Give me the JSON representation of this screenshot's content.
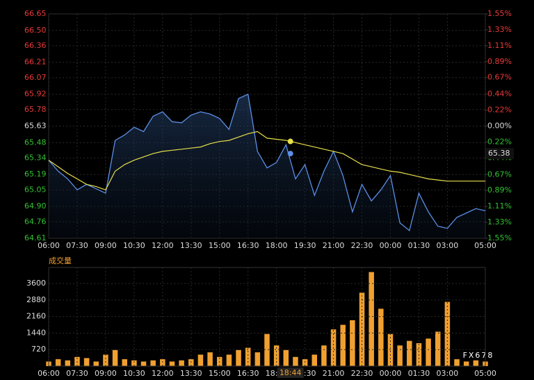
{
  "chart_data": [
    {
      "type": "line",
      "categories": [
        "06:00",
        null,
        null,
        "07:30",
        null,
        null,
        "09:00",
        null,
        null,
        "10:30",
        null,
        null,
        "12:00",
        null,
        null,
        "13:30",
        null,
        null,
        "15:00",
        null,
        null,
        "16:30",
        null,
        null,
        "18:00",
        null,
        null,
        "19:30",
        null,
        null,
        "21:00",
        null,
        null,
        "22:30",
        null,
        null,
        "00:00",
        null,
        null,
        "01:30",
        null,
        null,
        "03:00",
        null,
        null,
        null,
        "05:00"
      ],
      "series": [
        {
          "color": "#5b8fe6",
          "values": [
            65.32,
            65.22,
            65.15,
            65.05,
            65.1,
            65.06,
            65.02,
            65.5,
            65.55,
            65.62,
            65.58,
            65.72,
            65.76,
            65.67,
            65.66,
            65.73,
            65.76,
            65.74,
            65.7,
            65.6,
            65.88,
            65.92,
            65.4,
            65.25,
            65.3,
            65.46,
            65.15,
            65.28,
            65.0,
            65.22,
            65.4,
            65.18,
            64.85,
            65.1,
            64.95,
            65.05,
            65.18,
            64.75,
            64.68,
            65.02,
            64.85,
            64.72,
            64.7,
            64.8,
            64.84,
            64.88,
            64.86
          ]
        },
        {
          "color": "#e8e04a",
          "values": [
            65.32,
            65.26,
            65.2,
            65.15,
            65.1,
            65.08,
            65.05,
            65.22,
            65.28,
            65.32,
            65.35,
            65.38,
            65.4,
            65.41,
            65.42,
            65.43,
            65.44,
            65.47,
            65.49,
            65.5,
            65.53,
            65.56,
            65.58,
            65.52,
            65.51,
            65.5,
            65.48,
            65.46,
            65.44,
            65.42,
            65.4,
            65.38,
            65.33,
            65.28,
            65.26,
            65.24,
            65.22,
            65.21,
            65.19,
            65.17,
            65.15,
            65.14,
            65.13,
            65.13,
            65.13,
            65.13,
            65.13
          ]
        }
      ],
      "ylim": [
        64.61,
        66.65
      ],
      "yticks": [
        66.65,
        {
          "value": 66.5,
          "label": "66.50"
        },
        66.36,
        66.21,
        66.07,
        65.92,
        65.78,
        65.63,
        65.48,
        65.34,
        65.19,
        65.05,
        {
          "value": 64.9,
          "label": "64.90"
        },
        64.76,
        64.61
      ],
      "y2lim": [
        -1.55,
        1.55
      ],
      "y2ticks": [
        {
          "value": 1.55,
          "label": "1.55%"
        },
        {
          "value": 1.33,
          "label": "1.33%"
        },
        {
          "value": 1.11,
          "label": "1.11%"
        },
        {
          "value": 0.89,
          "label": "0.89%"
        },
        {
          "value": 0.67,
          "label": "0.67%"
        },
        {
          "value": 0.44,
          "label": "0.44%"
        },
        {
          "value": 0.22,
          "label": "0.22%"
        },
        {
          "value": 0,
          "label": "0.00%"
        },
        {
          "value": -0.22,
          "label": "0.22%"
        },
        {
          "value": -0.44,
          "label": "0.44%"
        },
        {
          "value": -0.67,
          "label": "0.67%"
        },
        {
          "value": -0.89,
          "label": "0.89%"
        },
        {
          "value": -1.11,
          "label": "1.11%"
        },
        {
          "value": -1.33,
          "label": "1.33%"
        },
        {
          "value": -1.55,
          "label": "1.55%"
        }
      ],
      "up_color": "#e83a3a",
      "down_color": "#33c233",
      "flat_color": "#dddddd",
      "grid": true,
      "cursor": {
        "x_label": "18:44",
        "y_label": "65.38"
      }
    },
    {
      "type": "bar",
      "title": "成交量",
      "color": "#f0a030",
      "values": [
        200,
        300,
        250,
        400,
        350,
        200,
        500,
        700,
        300,
        250,
        200,
        250,
        300,
        200,
        250,
        300,
        500,
        600,
        400,
        500,
        700,
        800,
        600,
        1400,
        900,
        700,
        400,
        300,
        500,
        900,
        1600,
        1800,
        2000,
        3200,
        4100,
        2500,
        1400,
        900,
        1100,
        1000,
        1200,
        1500,
        2800,
        300,
        200,
        250,
        200
      ],
      "ylim": [
        0,
        4300
      ],
      "yticks": [
        720,
        1440,
        2160,
        2880,
        3600
      ],
      "grid": true
    }
  ],
  "watermark": "FX678"
}
